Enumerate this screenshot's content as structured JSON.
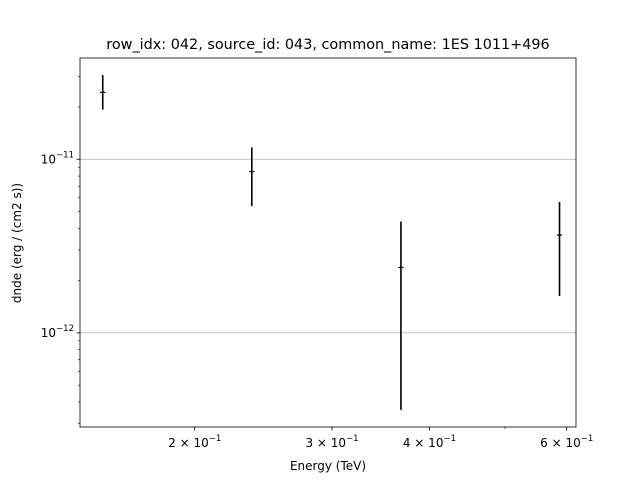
{
  "chart_data": {
    "type": "scatter",
    "title": "row_idx: 042, source_id: 043, common_name: 1ES 1011+496",
    "xlabel": "Energy (TeV)",
    "ylabel": "dnde (erg / (cm2 s))",
    "xscale": "log",
    "yscale": "log",
    "xlim": [
      0.1425,
      0.6167
    ],
    "ylim": [
      2.87e-13,
      3.83e-11
    ],
    "grid": "y-major",
    "x_major_ticks": [
      {
        "value": 0.2,
        "label": "2 × 10",
        "exp": "−1"
      },
      {
        "value": 0.3,
        "label": "3 × 10",
        "exp": "−1"
      },
      {
        "value": 0.4,
        "label": "4 × 10",
        "exp": "−1"
      },
      {
        "value": 0.6,
        "label": "6 × 10",
        "exp": "−1"
      }
    ],
    "x_minor_ticks": [
      0.5
    ],
    "y_major_ticks": [
      {
        "value": 1e-11,
        "label": "10",
        "exp": "−11"
      },
      {
        "value": 1e-12,
        "label": "10",
        "exp": "−12"
      }
    ],
    "y_minor_ticks": [
      3e-13,
      4e-13,
      5e-13,
      6e-13,
      7e-13,
      8e-13,
      9e-13,
      2e-12,
      3e-12,
      4e-12,
      5e-12,
      6e-12,
      7e-12,
      8e-12,
      9e-12,
      2e-11,
      3e-11
    ],
    "series": [
      {
        "points": [
          {
            "x": 0.1524,
            "y": 2.43e-11,
            "y_low": 1.93e-11,
            "y_high": 3.05e-11,
            "x_err_low": 0.0012,
            "x_err_high": 0.0012
          },
          {
            "x": 0.2367,
            "y": 8.5e-12,
            "y_low": 5.37e-12,
            "y_high": 1.17e-11,
            "x_err_low": 0.0018,
            "x_err_high": 0.0018
          },
          {
            "x": 0.3677,
            "y": 2.38e-12,
            "y_low": 3.6e-13,
            "y_high": 4.38e-12,
            "x_err_low": 0.0028,
            "x_err_high": 0.0028
          },
          {
            "x": 0.5874,
            "y": 3.66e-12,
            "y_low": 1.63e-12,
            "y_high": 5.68e-12,
            "x_err_low": 0.0045,
            "x_err_high": 0.0045
          }
        ]
      }
    ]
  }
}
